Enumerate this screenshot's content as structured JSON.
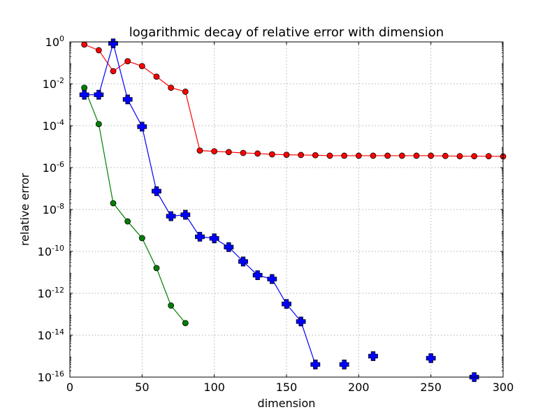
{
  "chart_data": {
    "type": "line",
    "title": "logarithmic decay of relative error with dimension",
    "xlabel": "dimension",
    "ylabel": "relative error",
    "xlim": [
      0,
      300
    ],
    "ylim": [
      1e-16,
      1
    ],
    "yscale": "log",
    "grid": true,
    "x_ticks": [
      0,
      50,
      100,
      150,
      200,
      250,
      300
    ],
    "y_ticks": [
      {
        "base": "10",
        "exp": "0",
        "value": 1
      },
      {
        "base": "10",
        "exp": "-2",
        "value": 0.01
      },
      {
        "base": "10",
        "exp": "-4",
        "value": 0.0001
      },
      {
        "base": "10",
        "exp": "-6",
        "value": 1e-06
      },
      {
        "base": "10",
        "exp": "-8",
        "value": 1e-08
      },
      {
        "base": "10",
        "exp": "-10",
        "value": 1e-10
      },
      {
        "base": "10",
        "exp": "-12",
        "value": 1e-12
      },
      {
        "base": "10",
        "exp": "-14",
        "value": 1e-14
      },
      {
        "base": "10",
        "exp": "-16",
        "value": 1e-16
      }
    ],
    "series": [
      {
        "color": "#ff0000",
        "marker": "circle",
        "line": true,
        "x": [
          10,
          20,
          30,
          40,
          50,
          60,
          70,
          80,
          90,
          100,
          110,
          120,
          130,
          140,
          150,
          160,
          170,
          180,
          190,
          200,
          210,
          220,
          230,
          240,
          250,
          260,
          270,
          280,
          290,
          300
        ],
        "y": [
          0.75,
          0.4,
          0.04,
          0.12,
          0.07,
          0.022,
          0.0065,
          0.0042,
          6.5e-06,
          6e-06,
          5.5e-06,
          5e-06,
          4.7e-06,
          4.3e-06,
          4.1e-06,
          4e-06,
          3.9e-06,
          3.7e-06,
          3.7e-06,
          3.7e-06,
          3.7e-06,
          3.7e-06,
          3.7e-06,
          3.7e-06,
          3.7e-06,
          3.6e-06,
          3.5e-06,
          3.5e-06,
          3.5e-06,
          3.4e-06
        ]
      },
      {
        "color": "#008000",
        "marker": "circle",
        "line": true,
        "x": [
          10,
          20,
          30,
          40,
          50,
          60,
          70,
          80
        ],
        "y": [
          0.0065,
          0.00012,
          2e-08,
          2.7e-09,
          4.3e-10,
          1.6e-11,
          2.6e-13,
          3.8e-14
        ]
      },
      {
        "color": "#0000ff",
        "marker": "plus-filled",
        "line": true,
        "x": [
          10,
          20,
          30,
          40,
          50,
          60,
          70,
          80,
          90,
          100,
          110,
          120,
          130,
          140,
          150,
          160,
          170
        ],
        "y": [
          0.003,
          0.003,
          0.85,
          0.0018,
          9e-05,
          7.5e-08,
          4.8e-09,
          5.6e-09,
          5e-10,
          4.2e-10,
          1.6e-10,
          3.3e-11,
          7.3e-12,
          4.8e-12,
          3.1e-13,
          4.5e-14,
          4e-16
        ]
      },
      {
        "color": "#0000ff",
        "marker": "plus-filled",
        "line": false,
        "x": [
          190,
          210,
          250,
          280
        ],
        "y": [
          4e-16,
          1e-15,
          8e-16,
          1e-16
        ]
      }
    ]
  }
}
